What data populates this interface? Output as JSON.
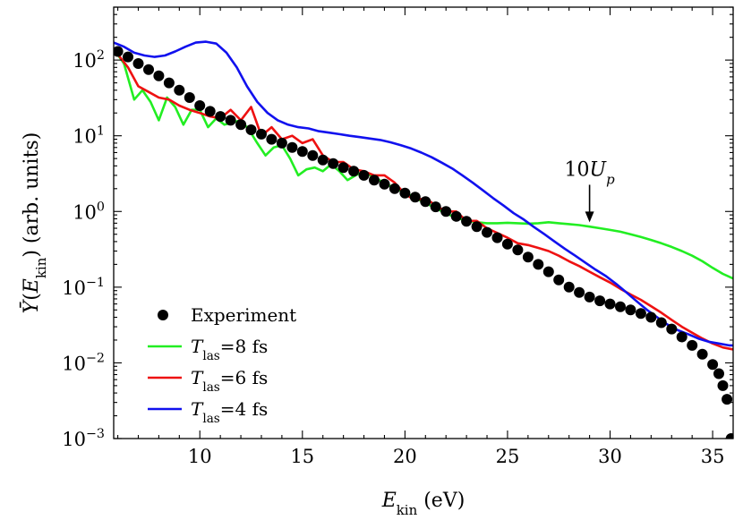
{
  "chart_data": {
    "type": "line",
    "xlabel": "E_kin (eV)",
    "ylabel": "Ȳ(E_kin) (arb. units)",
    "xlim": [
      5.8,
      36.0
    ],
    "ylim": [
      0.001,
      500
    ],
    "yscale": "log",
    "grid": false,
    "legend_position": "bottom-left",
    "x_ticks": [
      10,
      15,
      20,
      25,
      30,
      35
    ],
    "y_ticks": [
      {
        "value": 0.001,
        "base": "10",
        "exp": "−3"
      },
      {
        "value": 0.01,
        "base": "10",
        "exp": "−2"
      },
      {
        "value": 0.1,
        "base": "10",
        "exp": "−1"
      },
      {
        "value": 1,
        "base": "10",
        "exp": "0"
      },
      {
        "value": 10,
        "base": "10",
        "exp": "1"
      },
      {
        "value": 100,
        "base": "10",
        "exp": "2"
      }
    ],
    "annotation": {
      "text": "10U_p",
      "x": 29.0,
      "y": 0.68
    },
    "series": [
      {
        "name": "Experiment",
        "style": "markers",
        "color": "#000000",
        "x": [
          6.0,
          6.5,
          7.0,
          7.5,
          8.0,
          8.5,
          9.0,
          9.5,
          10.0,
          10.5,
          11.0,
          11.5,
          12.0,
          12.5,
          13.0,
          13.5,
          14.0,
          14.5,
          15.0,
          15.5,
          16.0,
          16.5,
          17.0,
          17.5,
          18.0,
          18.5,
          19.0,
          19.5,
          20.0,
          20.5,
          21.0,
          21.5,
          22.0,
          22.5,
          23.0,
          23.5,
          24.0,
          24.5,
          25.0,
          25.5,
          26.0,
          26.5,
          27.0,
          27.5,
          28.0,
          28.5,
          29.0,
          29.5,
          30.0,
          30.5,
          31.0,
          31.5,
          32.0,
          32.5,
          33.0,
          33.5,
          34.0,
          34.5,
          35.0,
          35.3,
          35.5,
          35.7,
          35.9
        ],
        "y": [
          130,
          110,
          90,
          75,
          62,
          50,
          40,
          32,
          25,
          21,
          18,
          16,
          14,
          12,
          10.5,
          9,
          8,
          7,
          6.2,
          5.5,
          4.8,
          4.3,
          3.8,
          3.4,
          3.0,
          2.6,
          2.3,
          2.0,
          1.75,
          1.55,
          1.35,
          1.15,
          1.0,
          0.86,
          0.74,
          0.63,
          0.53,
          0.45,
          0.37,
          0.31,
          0.25,
          0.2,
          0.16,
          0.125,
          0.1,
          0.085,
          0.074,
          0.066,
          0.06,
          0.055,
          0.05,
          0.045,
          0.04,
          0.034,
          0.028,
          0.022,
          0.017,
          0.013,
          0.0095,
          0.0072,
          0.005,
          0.0033,
          0.001
        ]
      },
      {
        "name": "T_las=8 fs",
        "style": "line",
        "color": "#22ee22",
        "x": [
          5.8,
          6.3,
          6.8,
          7.2,
          7.6,
          8.0,
          8.4,
          8.8,
          9.2,
          9.6,
          10.0,
          10.4,
          10.8,
          11.2,
          11.6,
          12.0,
          12.4,
          12.8,
          13.2,
          13.6,
          14.0,
          14.4,
          14.8,
          15.2,
          15.6,
          16.0,
          16.4,
          16.8,
          17.2,
          17.6,
          18.0,
          18.5,
          19.0,
          19.5,
          20.0,
          20.5,
          21.0,
          21.5,
          22.0,
          22.5,
          23.0,
          23.5,
          24.0,
          24.5,
          25.0,
          25.5,
          26.0,
          26.5,
          27.0,
          27.5,
          28.0,
          28.5,
          29.0,
          29.5,
          30.0,
          30.5,
          31.0,
          31.5,
          32.0,
          32.5,
          33.0,
          33.5,
          34.0,
          34.5,
          35.0,
          35.5,
          36.0
        ],
        "y": [
          140,
          90,
          30,
          40,
          28,
          16,
          32,
          24,
          14,
          22,
          22,
          13,
          17,
          14,
          15,
          16,
          12,
          8,
          5.5,
          7,
          7.5,
          5,
          3.0,
          3.6,
          3.8,
          3.4,
          4.2,
          3.4,
          2.6,
          3.0,
          3.4,
          2.8,
          2.4,
          2.0,
          1.8,
          1.5,
          1.3,
          1.1,
          0.95,
          0.82,
          0.76,
          0.72,
          0.7,
          0.7,
          0.71,
          0.7,
          0.69,
          0.7,
          0.72,
          0.7,
          0.68,
          0.66,
          0.63,
          0.6,
          0.57,
          0.54,
          0.5,
          0.46,
          0.42,
          0.38,
          0.34,
          0.3,
          0.26,
          0.22,
          0.18,
          0.15,
          0.13
        ]
      },
      {
        "name": "T_las=6 fs",
        "style": "line",
        "color": "#ee1111",
        "x": [
          5.8,
          6.5,
          7.0,
          7.5,
          8.0,
          8.5,
          9.0,
          9.5,
          10.0,
          10.5,
          11.0,
          11.5,
          12.0,
          12.5,
          13.0,
          13.5,
          14.0,
          14.5,
          15.0,
          15.5,
          16.0,
          16.5,
          17.0,
          17.5,
          18.0,
          18.5,
          19.0,
          19.5,
          20.0,
          20.5,
          21.0,
          21.5,
          22.0,
          22.5,
          23.0,
          23.5,
          24.0,
          24.5,
          25.0,
          25.5,
          26.0,
          26.5,
          27.0,
          27.5,
          28.0,
          28.5,
          29.0,
          29.5,
          30.0,
          30.5,
          31.0,
          31.5,
          32.0,
          32.5,
          33.0,
          33.5,
          34.0,
          34.5,
          35.0,
          35.5,
          36.0
        ],
        "y": [
          140,
          80,
          45,
          38,
          32,
          30,
          25,
          22,
          20,
          18,
          17,
          22,
          16,
          24,
          10,
          13,
          9,
          10,
          8,
          9,
          5.5,
          4.5,
          4.5,
          3.6,
          3.4,
          3.0,
          3.0,
          2.4,
          1.7,
          1.4,
          1.5,
          1.2,
          1.0,
          1.0,
          0.75,
          0.75,
          0.6,
          0.52,
          0.45,
          0.38,
          0.36,
          0.33,
          0.3,
          0.26,
          0.22,
          0.19,
          0.16,
          0.135,
          0.115,
          0.095,
          0.08,
          0.068,
          0.056,
          0.046,
          0.037,
          0.03,
          0.025,
          0.021,
          0.018,
          0.016,
          0.015
        ]
      },
      {
        "name": "T_las=4 fs",
        "style": "line",
        "color": "#1111ee",
        "x": [
          5.8,
          6.3,
          6.8,
          7.3,
          7.8,
          8.3,
          8.8,
          9.3,
          9.8,
          10.3,
          10.8,
          11.3,
          11.8,
          12.3,
          12.8,
          13.3,
          13.8,
          14.3,
          14.8,
          15.3,
          15.8,
          16.3,
          16.8,
          17.3,
          17.8,
          18.3,
          18.8,
          19.3,
          19.8,
          20.3,
          20.8,
          21.3,
          21.8,
          22.3,
          22.8,
          23.3,
          23.8,
          24.3,
          24.8,
          25.3,
          25.8,
          26.3,
          26.8,
          27.3,
          27.8,
          28.3,
          28.8,
          29.3,
          29.8,
          30.3,
          30.8,
          31.3,
          31.8,
          32.3,
          32.8,
          33.3,
          33.8,
          34.3,
          34.8,
          35.3,
          35.8,
          36.0
        ],
        "y": [
          170,
          150,
          125,
          115,
          110,
          115,
          130,
          150,
          170,
          175,
          165,
          125,
          80,
          45,
          28,
          20,
          16,
          14,
          13,
          12.5,
          11.5,
          11,
          10.5,
          10,
          9.6,
          9.2,
          8.8,
          8.2,
          7.5,
          6.8,
          6,
          5.2,
          4.4,
          3.7,
          3.0,
          2.4,
          1.9,
          1.5,
          1.2,
          0.95,
          0.78,
          0.62,
          0.5,
          0.4,
          0.32,
          0.26,
          0.21,
          0.17,
          0.14,
          0.11,
          0.085,
          0.065,
          0.05,
          0.04,
          0.032,
          0.027,
          0.024,
          0.021,
          0.019,
          0.018,
          0.017,
          0.017
        ]
      }
    ]
  }
}
